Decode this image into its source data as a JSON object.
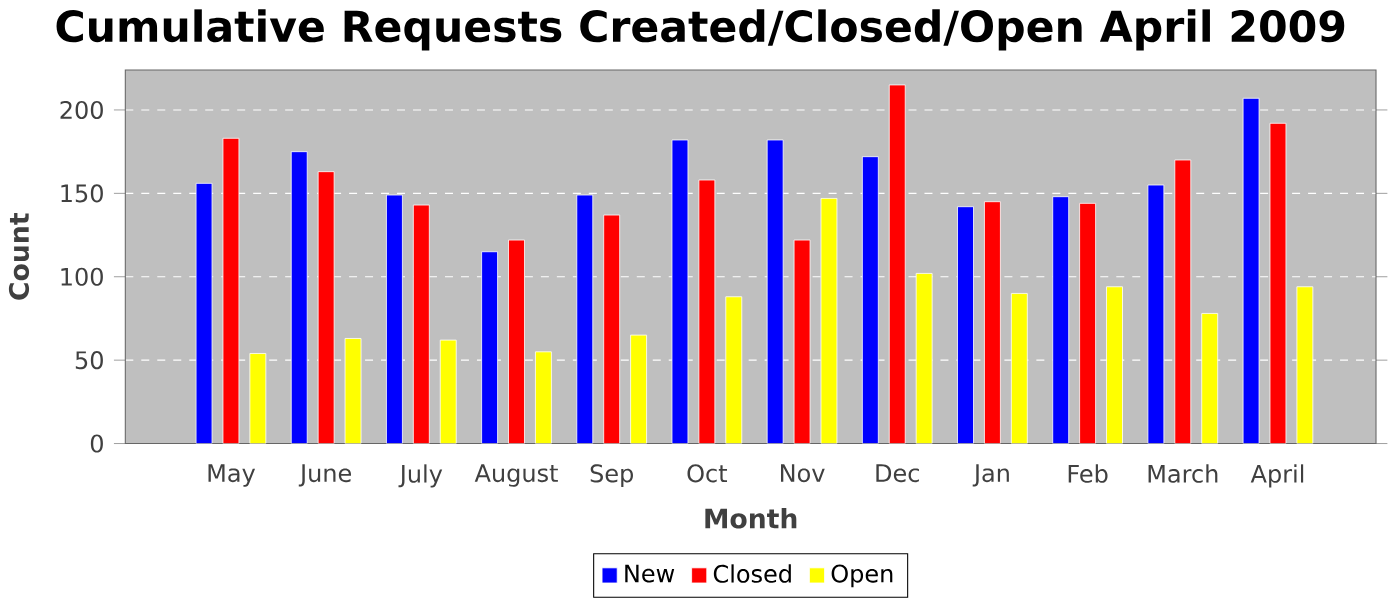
{
  "chart_data": {
    "type": "bar",
    "title": "Cumulative Requests Created/Closed/Open April 2009",
    "xlabel": "Month",
    "ylabel": "Count",
    "categories": [
      "May",
      "June",
      "July",
      "August",
      "Sep",
      "Oct",
      "Nov",
      "Dec",
      "Jan",
      "Feb",
      "March",
      "April"
    ],
    "series": [
      {
        "name": "New",
        "color": "#0000ff",
        "values": [
          156,
          175,
          149,
          115,
          149,
          182,
          182,
          172,
          142,
          148,
          155,
          207
        ]
      },
      {
        "name": "Closed",
        "color": "#ff0000",
        "values": [
          183,
          163,
          143,
          122,
          137,
          158,
          122,
          215,
          145,
          144,
          170,
          192
        ]
      },
      {
        "name": "Open",
        "color": "#ffff00",
        "values": [
          54,
          63,
          62,
          55,
          65,
          88,
          147,
          102,
          90,
          94,
          78,
          94
        ]
      }
    ],
    "ylim": [
      0,
      224
    ],
    "yticks": [
      0,
      50,
      100,
      150,
      200
    ],
    "grid": "y",
    "legend": "bottom"
  }
}
